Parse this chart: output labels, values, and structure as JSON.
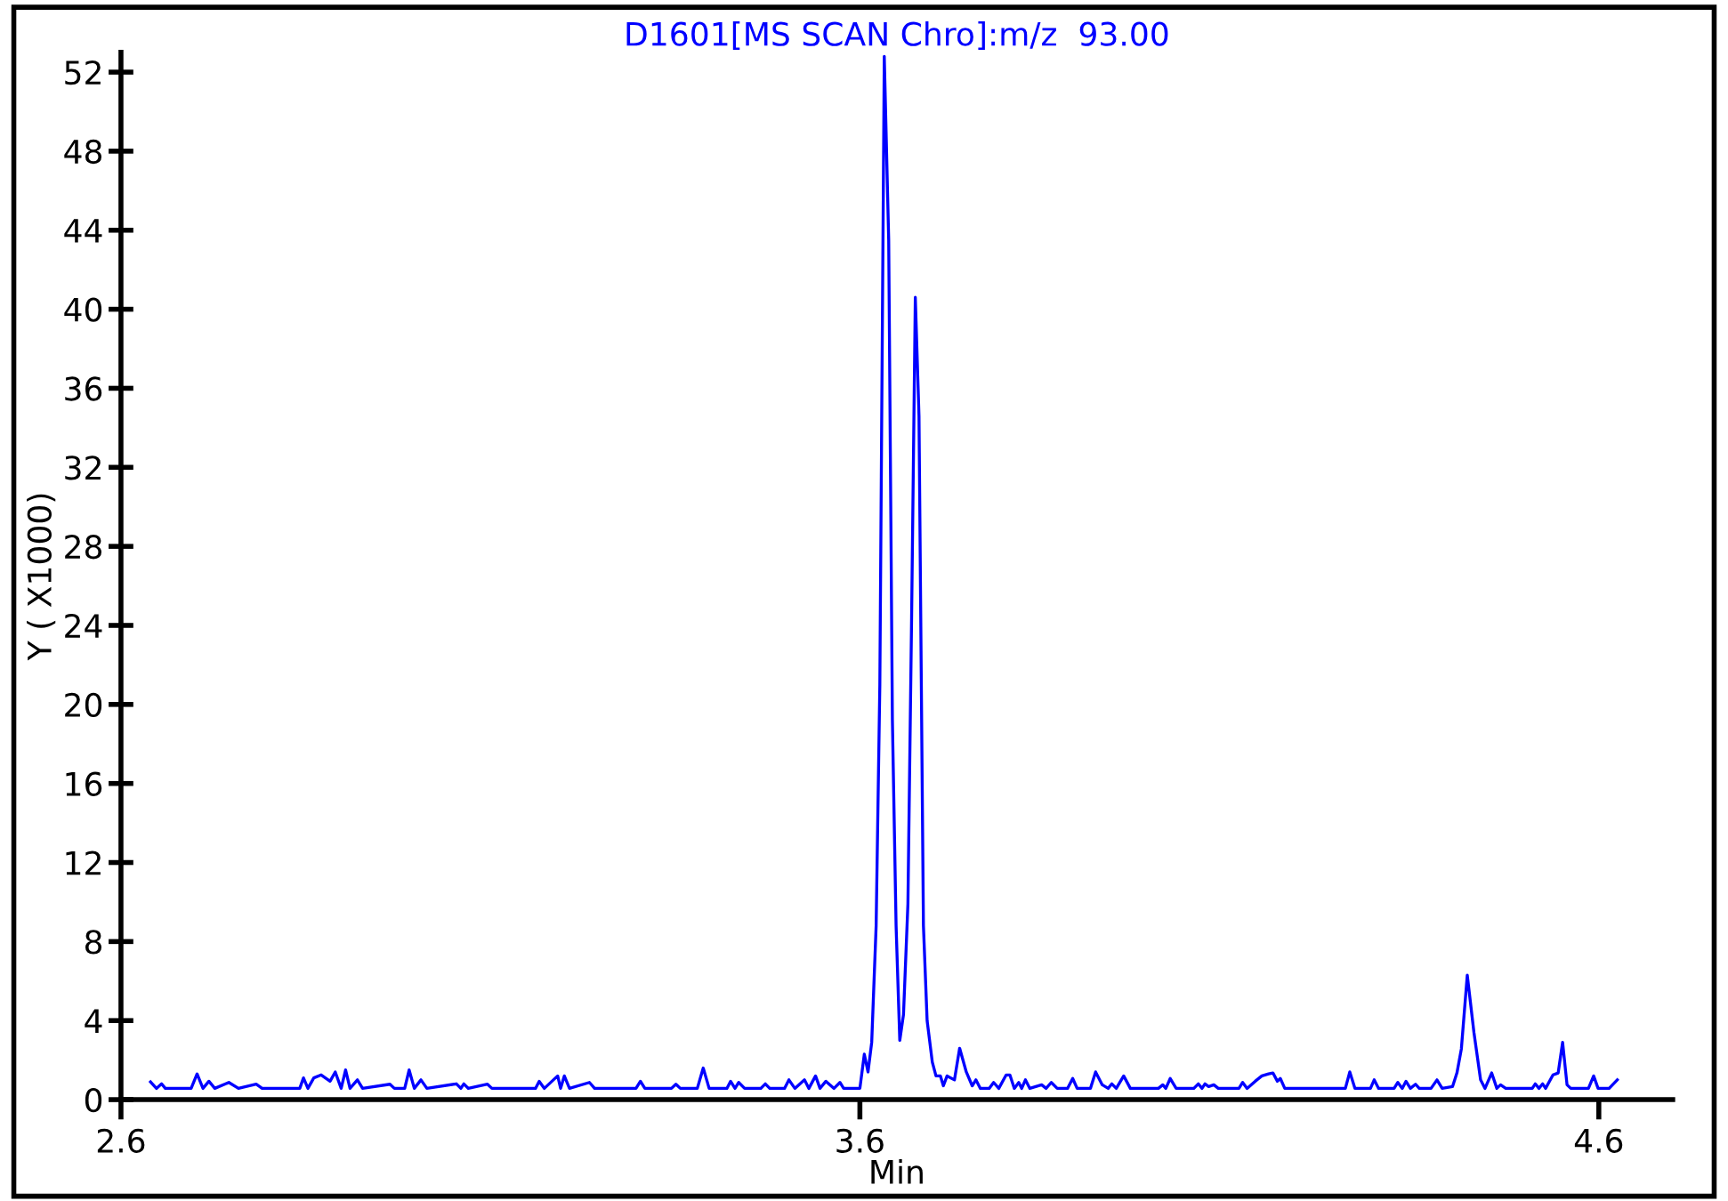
{
  "chart_data": {
    "type": "line",
    "title": "D1601[MS SCAN Chro]:m/z  93.00",
    "xlabel": "Min",
    "ylabel": "Y ( X1000)",
    "xlim": [
      2.6,
      4.7
    ],
    "ylim": [
      0,
      53
    ],
    "xticks": [
      2.6,
      3.6,
      4.6
    ],
    "yticks": [
      0,
      4,
      8,
      12,
      16,
      20,
      24,
      28,
      32,
      36,
      40,
      44,
      48,
      52
    ],
    "series": [
      {
        "color": "#0000ff",
        "x": [
          2.64,
          2.648,
          2.655,
          2.66,
          2.695,
          2.703,
          2.711,
          2.719,
          2.727,
          2.746,
          2.759,
          2.783,
          2.791,
          2.842,
          2.847,
          2.853,
          2.861,
          2.871,
          2.883,
          2.89,
          2.898,
          2.904,
          2.91,
          2.92,
          2.927,
          2.964,
          2.97,
          2.984,
          2.99,
          2.997,
          3.006,
          3.014,
          3.054,
          3.06,
          3.064,
          3.07,
          3.096,
          3.102,
          3.161,
          3.166,
          3.173,
          3.191,
          3.195,
          3.2,
          3.207,
          3.234,
          3.241,
          3.297,
          3.303,
          3.309,
          3.345,
          3.351,
          3.357,
          3.38,
          3.388,
          3.396,
          3.42,
          3.425,
          3.431,
          3.436,
          3.444,
          3.466,
          3.472,
          3.478,
          3.498,
          3.504,
          3.512,
          3.525,
          3.531,
          3.54,
          3.546,
          3.554,
          3.565,
          3.573,
          3.578,
          3.6,
          3.606,
          3.611,
          3.616,
          3.622,
          3.627,
          3.633,
          3.639,
          3.644,
          3.649,
          3.654,
          3.659,
          3.665,
          3.67,
          3.675,
          3.68,
          3.686,
          3.691,
          3.698,
          3.703,
          3.709,
          3.713,
          3.718,
          3.728,
          3.735,
          3.744,
          3.752,
          3.757,
          3.763,
          3.775,
          3.781,
          3.788,
          3.798,
          3.803,
          3.809,
          3.815,
          3.819,
          3.824,
          3.83,
          3.846,
          3.852,
          3.859,
          3.867,
          3.881,
          3.888,
          3.894,
          3.912,
          3.919,
          3.928,
          3.936,
          3.941,
          3.947,
          3.957,
          3.966,
          4.004,
          4.01,
          4.014,
          4.02,
          4.028,
          4.052,
          4.058,
          4.063,
          4.067,
          4.072,
          4.079,
          4.085,
          4.113,
          4.118,
          4.124,
          4.135,
          4.144,
          4.153,
          4.159,
          4.165,
          4.169,
          4.175,
          4.257,
          4.263,
          4.27,
          4.291,
          4.296,
          4.302,
          4.323,
          4.328,
          4.334,
          4.339,
          4.345,
          4.352,
          4.357,
          4.373,
          4.381,
          4.388,
          4.402,
          4.408,
          4.414,
          4.422,
          4.431,
          4.44,
          4.446,
          4.455,
          4.462,
          4.467,
          4.474,
          4.51,
          4.514,
          4.519,
          4.524,
          4.528,
          4.538,
          4.545,
          4.551,
          4.557,
          4.562,
          4.586,
          4.593,
          4.599,
          4.614,
          4.625
        ],
        "values": [
          0.9,
          0.57,
          0.8,
          0.57,
          0.57,
          1.3,
          0.57,
          0.93,
          0.57,
          0.87,
          0.57,
          0.78,
          0.57,
          0.57,
          1.1,
          0.57,
          1.1,
          1.25,
          0.93,
          1.4,
          0.57,
          1.5,
          0.57,
          1.0,
          0.57,
          0.78,
          0.57,
          0.57,
          1.5,
          0.57,
          1.0,
          0.57,
          0.8,
          0.57,
          0.8,
          0.57,
          0.78,
          0.57,
          0.57,
          0.93,
          0.57,
          1.2,
          0.57,
          1.2,
          0.57,
          0.87,
          0.57,
          0.57,
          0.93,
          0.57,
          0.57,
          0.78,
          0.57,
          0.57,
          1.6,
          0.57,
          0.57,
          0.93,
          0.57,
          0.87,
          0.57,
          0.57,
          0.8,
          0.57,
          0.57,
          1.0,
          0.57,
          1.0,
          0.57,
          1.2,
          0.57,
          0.93,
          0.57,
          0.87,
          0.57,
          0.57,
          2.3,
          1.4,
          2.9,
          8.8,
          21,
          52.8,
          43.5,
          19.2,
          8.8,
          3.0,
          4.3,
          9.9,
          24.4,
          40.6,
          34.6,
          8.8,
          4.0,
          1.9,
          1.2,
          1.2,
          0.7,
          1.2,
          1.0,
          2.6,
          1.4,
          0.7,
          1.0,
          0.57,
          0.57,
          0.87,
          0.57,
          1.25,
          1.25,
          0.57,
          0.87,
          0.57,
          1.0,
          0.57,
          0.75,
          0.57,
          0.87,
          0.57,
          0.57,
          1.07,
          0.57,
          0.57,
          1.4,
          0.75,
          0.57,
          0.8,
          0.57,
          1.2,
          0.57,
          0.57,
          0.75,
          0.57,
          1.07,
          0.57,
          0.57,
          0.8,
          0.57,
          0.8,
          0.66,
          0.75,
          0.57,
          0.57,
          0.87,
          0.57,
          0.93,
          1.2,
          1.3,
          1.35,
          0.93,
          1.07,
          0.57,
          0.57,
          1.4,
          0.57,
          0.57,
          1.0,
          0.57,
          0.57,
          0.87,
          0.57,
          0.93,
          0.57,
          0.78,
          0.57,
          0.57,
          1.0,
          0.57,
          0.66,
          1.35,
          2.57,
          6.3,
          3.4,
          1.0,
          0.57,
          1.35,
          0.57,
          0.75,
          0.57,
          0.57,
          0.8,
          0.57,
          0.8,
          0.57,
          1.25,
          1.35,
          2.9,
          0.75,
          0.57,
          0.57,
          1.2,
          0.57,
          0.57,
          1.0
        ]
      }
    ]
  }
}
